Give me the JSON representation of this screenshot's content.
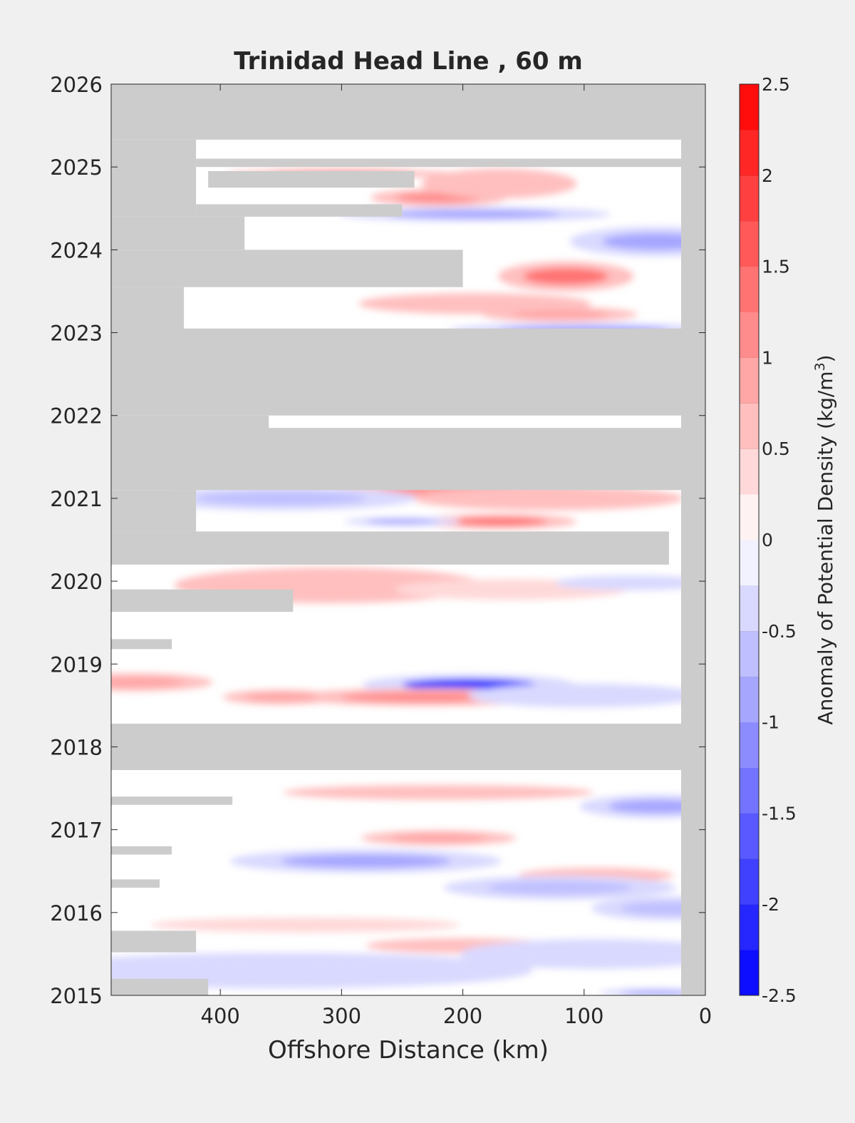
{
  "chart_data": {
    "type": "heatmap",
    "title": "Trinidad Head Line , 60 m",
    "xlabel": "Offshore Distance (km)",
    "ylabel": "",
    "xlim": [
      490,
      0
    ],
    "ylim": [
      2015,
      2026
    ],
    "x_ticks": [
      400,
      300,
      200,
      100,
      0
    ],
    "y_ticks": [
      2015,
      2016,
      2017,
      2018,
      2019,
      2020,
      2021,
      2022,
      2023,
      2024,
      2025,
      2026
    ],
    "colorbar": {
      "label_main": "Anomaly of Potential Density (kg/m",
      "label_sup": "3",
      "label_close": ")",
      "range": [
        -2.5,
        2.5
      ],
      "ticks": [
        "2.5",
        "2",
        "1.5",
        "1",
        "0.5",
        "0",
        "-0.5",
        "-1",
        "-1.5",
        "-2",
        "-2.5"
      ],
      "levels": 20,
      "negative_color": "#0000ff",
      "zero_color": "#ffffff",
      "positive_color": "#ff0000"
    },
    "missing_color": "#cccccc",
    "missing_regions": [
      {
        "x": [
          490,
          0
        ],
        "y": [
          2025.33,
          2026
        ]
      },
      {
        "x": [
          20,
          0
        ],
        "y": [
          2015,
          2026
        ]
      },
      {
        "x": [
          490,
          420
        ],
        "y": [
          2024.4,
          2025.33
        ]
      },
      {
        "x": [
          420,
          20
        ],
        "y": [
          2025.0,
          2025.1
        ]
      },
      {
        "x": [
          410,
          240
        ],
        "y": [
          2024.75,
          2024.95
        ]
      },
      {
        "x": [
          420,
          250
        ],
        "y": [
          2024.4,
          2024.55
        ]
      },
      {
        "x": [
          490,
          380
        ],
        "y": [
          2024.0,
          2024.4
        ]
      },
      {
        "x": [
          490,
          200
        ],
        "y": [
          2023.55,
          2024.0
        ]
      },
      {
        "x": [
          490,
          430
        ],
        "y": [
          2023.0,
          2023.55
        ]
      },
      {
        "x": [
          490,
          0
        ],
        "y": [
          2022.0,
          2023.05
        ]
      },
      {
        "x": [
          490,
          360
        ],
        "y": [
          2021.45,
          2022.0
        ]
      },
      {
        "x": [
          490,
          20
        ],
        "y": [
          2021.1,
          2021.85
        ]
      },
      {
        "x": [
          490,
          420
        ],
        "y": [
          2020.6,
          2021.1
        ]
      },
      {
        "x": [
          490,
          30
        ],
        "y": [
          2020.2,
          2020.6
        ]
      },
      {
        "x": [
          490,
          340
        ],
        "y": [
          2019.63,
          2019.9
        ]
      },
      {
        "x": [
          490,
          440
        ],
        "y": [
          2019.18,
          2019.3
        ]
      },
      {
        "x": [
          490,
          20
        ],
        "y": [
          2017.72,
          2018.28
        ]
      },
      {
        "x": [
          490,
          390
        ],
        "y": [
          2017.3,
          2017.4
        ]
      },
      {
        "x": [
          490,
          440
        ],
        "y": [
          2016.7,
          2016.8
        ]
      },
      {
        "x": [
          490,
          450
        ],
        "y": [
          2016.3,
          2016.4
        ]
      },
      {
        "x": [
          490,
          420
        ],
        "y": [
          2015.52,
          2015.78
        ]
      },
      {
        "x": [
          490,
          410
        ],
        "y": [
          2015.0,
          2015.2
        ]
      }
    ],
    "anomalies": [
      {
        "x": 300,
        "y": 2024.92,
        "rx": 60,
        "ry": 0.03,
        "value": 1.0
      },
      {
        "x": 220,
        "y": 2024.63,
        "rx": 35,
        "ry": 0.06,
        "value": 1.0
      },
      {
        "x": 170,
        "y": 2024.8,
        "rx": 40,
        "ry": 0.1,
        "value": 0.6
      },
      {
        "x": 190,
        "y": 2024.43,
        "rx": 70,
        "ry": 0.05,
        "value": -0.8
      },
      {
        "x": 40,
        "y": 2024.1,
        "rx": 45,
        "ry": 0.1,
        "value": -0.8
      },
      {
        "x": 115,
        "y": 2023.68,
        "rx": 35,
        "ry": 0.1,
        "value": 1.4
      },
      {
        "x": 190,
        "y": 2023.35,
        "rx": 60,
        "ry": 0.07,
        "value": 0.5
      },
      {
        "x": 120,
        "y": 2023.22,
        "rx": 40,
        "ry": 0.05,
        "value": 0.8
      },
      {
        "x": 100,
        "y": 2023.03,
        "rx": 70,
        "ry": 0.05,
        "value": -0.9
      },
      {
        "x": 200,
        "y": 2021.1,
        "rx": 70,
        "ry": 0.06,
        "value": 1.0
      },
      {
        "x": 130,
        "y": 2021.0,
        "rx": 70,
        "ry": 0.08,
        "value": 0.7
      },
      {
        "x": 350,
        "y": 2021.0,
        "rx": 70,
        "ry": 0.08,
        "value": -0.6
      },
      {
        "x": 170,
        "y": 2020.72,
        "rx": 40,
        "ry": 0.05,
        "value": 1.3
      },
      {
        "x": 250,
        "y": 2020.72,
        "rx": 30,
        "ry": 0.03,
        "value": -0.8
      },
      {
        "x": 310,
        "y": 2019.95,
        "rx": 80,
        "ry": 0.12,
        "value": 0.5
      },
      {
        "x": 160,
        "y": 2019.9,
        "rx": 60,
        "ry": 0.07,
        "value": 0.4
      },
      {
        "x": 60,
        "y": 2019.98,
        "rx": 40,
        "ry": 0.05,
        "value": -0.5
      },
      {
        "x": 195,
        "y": 2018.75,
        "rx": 55,
        "ry": 0.07,
        "value": -2.2
      },
      {
        "x": 230,
        "y": 2018.6,
        "rx": 70,
        "ry": 0.06,
        "value": 1.0
      },
      {
        "x": 350,
        "y": 2018.6,
        "rx": 30,
        "ry": 0.05,
        "value": 0.9
      },
      {
        "x": 470,
        "y": 2018.78,
        "rx": 40,
        "ry": 0.06,
        "value": 0.8
      },
      {
        "x": 100,
        "y": 2018.62,
        "rx": 60,
        "ry": 0.08,
        "value": -0.5
      },
      {
        "x": 220,
        "y": 2017.45,
        "rx": 80,
        "ry": 0.05,
        "value": 0.5
      },
      {
        "x": 40,
        "y": 2017.28,
        "rx": 40,
        "ry": 0.08,
        "value": -0.8
      },
      {
        "x": 220,
        "y": 2016.9,
        "rx": 40,
        "ry": 0.05,
        "value": 0.9
      },
      {
        "x": 280,
        "y": 2016.62,
        "rx": 70,
        "ry": 0.08,
        "value": -0.8
      },
      {
        "x": 90,
        "y": 2016.45,
        "rx": 40,
        "ry": 0.05,
        "value": 0.5
      },
      {
        "x": 120,
        "y": 2016.3,
        "rx": 60,
        "ry": 0.08,
        "value": -0.6
      },
      {
        "x": 30,
        "y": 2016.05,
        "rx": 40,
        "ry": 0.08,
        "value": -0.7
      },
      {
        "x": 330,
        "y": 2015.85,
        "rx": 80,
        "ry": 0.05,
        "value": 0.4
      },
      {
        "x": 200,
        "y": 2015.6,
        "rx": 50,
        "ry": 0.05,
        "value": 0.5
      },
      {
        "x": 350,
        "y": 2015.3,
        "rx": 130,
        "ry": 0.12,
        "value": -0.5
      },
      {
        "x": 90,
        "y": 2015.5,
        "rx": 70,
        "ry": 0.1,
        "value": -0.5
      },
      {
        "x": 40,
        "y": 2015.03,
        "rx": 30,
        "ry": 0.03,
        "value": -1.0
      }
    ]
  }
}
